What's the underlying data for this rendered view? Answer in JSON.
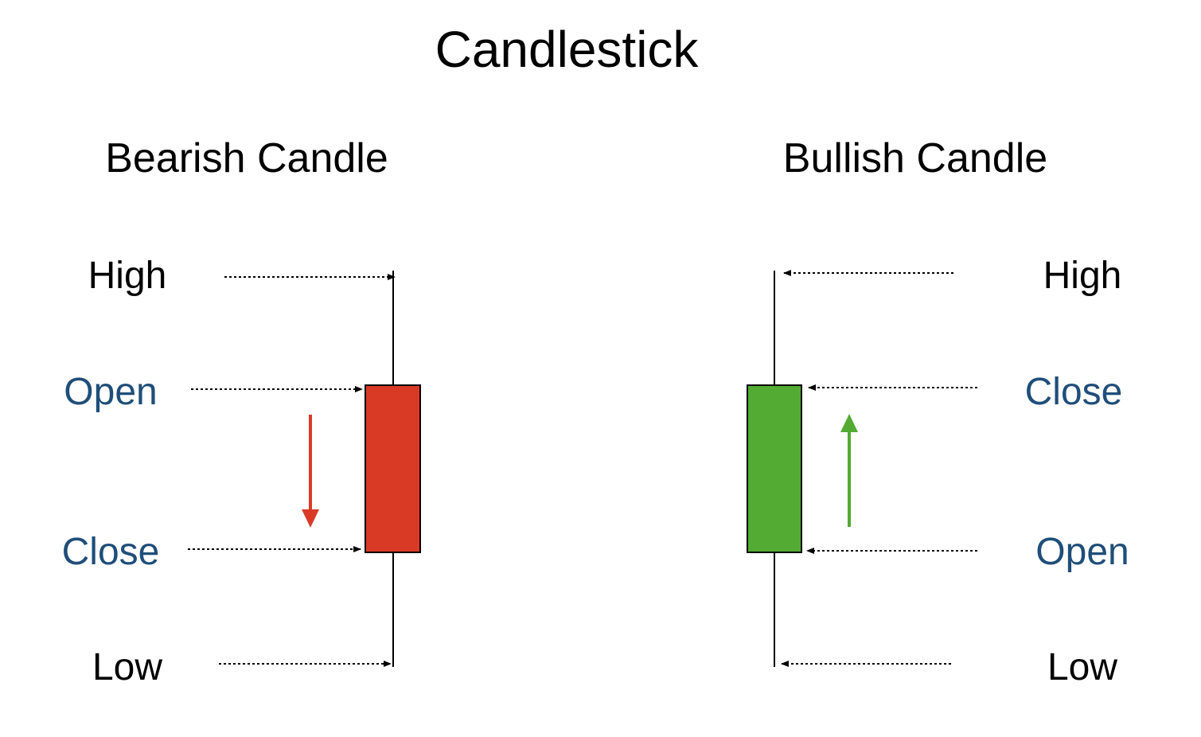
{
  "title": "Candlestick",
  "colors": {
    "text": "#000000",
    "price_label": "#1f4e79",
    "bearish_body": "#d93a26",
    "bullish_body": "#53ab33",
    "line": "#000000"
  },
  "bearish": {
    "heading": "Bearish Candle",
    "high": "High",
    "open": "Open",
    "close": "Close",
    "low": "Low",
    "direction": "down"
  },
  "bullish": {
    "heading": "Bullish Candle",
    "high": "High",
    "close": "Close",
    "open": "Open",
    "low": "Low",
    "direction": "up"
  }
}
